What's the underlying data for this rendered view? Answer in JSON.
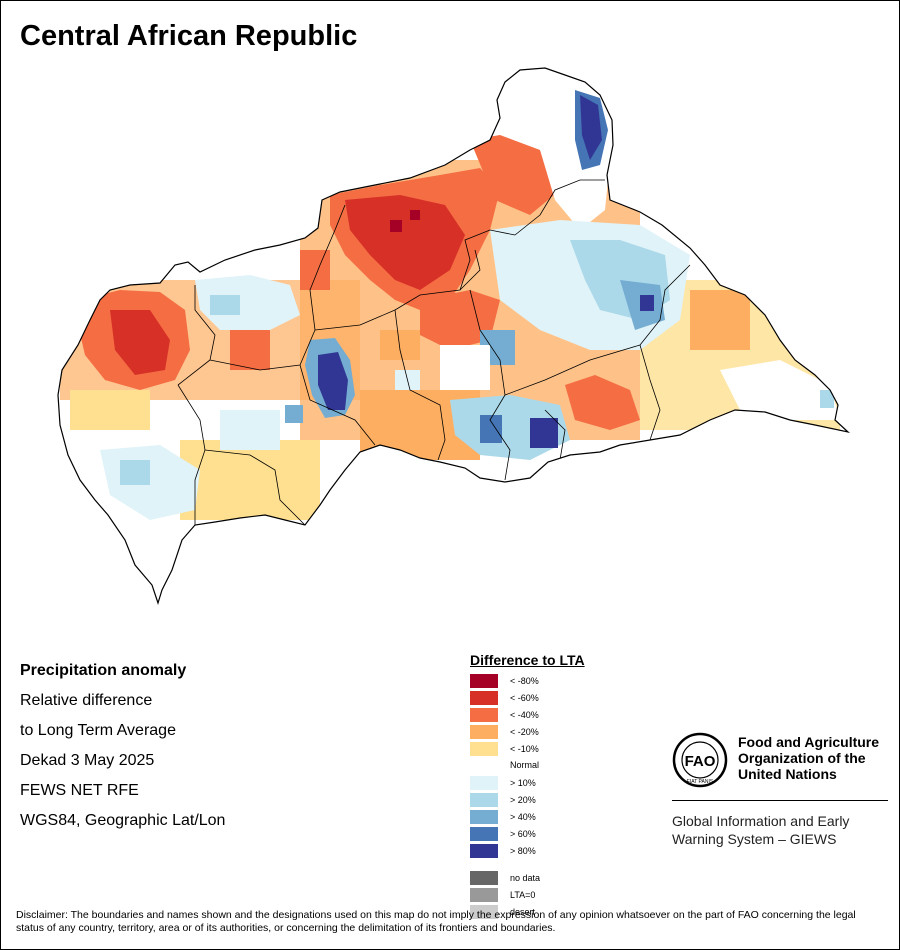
{
  "title": "Central African Republic",
  "info": {
    "heading": "Precipitation anomaly",
    "lines": [
      "Relative difference",
      "to Long Term Average",
      "Dekad 3 May 2025",
      "FEWS NET RFE",
      "WGS84, Geographic Lat/Lon"
    ]
  },
  "legend": {
    "title": "Difference to LTA",
    "dry": [
      {
        "label": "< -80%",
        "color": "#a50026"
      },
      {
        "label": "< -60%",
        "color": "#d73027"
      },
      {
        "label": "< -40%",
        "color": "#f46d43"
      },
      {
        "label": "< -20%",
        "color": "#fdae61"
      },
      {
        "label": "< -10%",
        "color": "#fee090"
      }
    ],
    "normal": "Normal",
    "wet": [
      {
        "label": "> 10%",
        "color": "#e0f3f8"
      },
      {
        "label": "> 20%",
        "color": "#abd9e9"
      },
      {
        "label": "> 40%",
        "color": "#74add1"
      },
      {
        "label": "> 60%",
        "color": "#4575b4"
      },
      {
        "label": "> 80%",
        "color": "#313695"
      }
    ],
    "other": [
      {
        "label": "no data",
        "color": "#666666"
      },
      {
        "label": "LTA=0",
        "color": "#999999"
      },
      {
        "label": "desert",
        "color": "#cccccc"
      }
    ]
  },
  "fao": {
    "emblem_text": "FAO",
    "motto": "FIAT PANIS",
    "name_lines": [
      "Food and Agriculture",
      "Organization of the",
      "United Nations"
    ],
    "giews_lines": [
      "Global Information and Early",
      "Warning System – GIEWS"
    ]
  },
  "disclaimer": "Disclaimer: The boundaries and names shown and the designations used on this map do not imply the expression of any opinion whatsoever on the part of FAO concerning the legal status of any country, territory, area or of its authorities, or concerning the delimitation of its frontiers and boundaries."
}
